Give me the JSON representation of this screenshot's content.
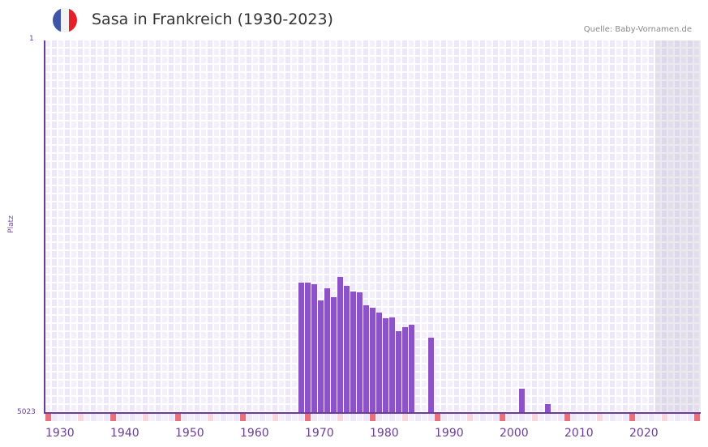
{
  "header": {
    "title": "Sasa in Frankreich (1930-2023)",
    "source": "Quelle: Baby-Vornamen.de",
    "flag": {
      "name": "france-flag",
      "colors": [
        "#3e55a8",
        "#f3f3f3",
        "#e6202b"
      ]
    }
  },
  "colors": {
    "bar": "#8c52c8",
    "axis": "#6a3d9a",
    "decade_marker": "#e8707a",
    "half_decade_marker": "#f7d6de",
    "future_shade": "rgba(170,160,190,0.22)"
  },
  "chart_data": {
    "type": "bar",
    "title": "Sasa in Frankreich (1930-2023)",
    "xlabel": "",
    "ylabel": "Platz",
    "y_inverted": true,
    "ylim": [
      5023,
      1
    ],
    "y_ticks": [
      "1",
      "5023"
    ],
    "x_range": [
      1930,
      2030
    ],
    "x_ticks": [
      "1930",
      "1940",
      "1950",
      "1960",
      "1970",
      "1980",
      "1990",
      "2000",
      "2010",
      "2020"
    ],
    "future_shaded_from": 2024,
    "grid": true,
    "legend": null,
    "categories": [
      1969,
      1970,
      1971,
      1972,
      1973,
      1974,
      1975,
      1976,
      1977,
      1978,
      1979,
      1980,
      1981,
      1982,
      1983,
      1984,
      1985,
      1986,
      1989,
      2003,
      2007
    ],
    "values": [
      3265,
      3265,
      3287,
      3505,
      3342,
      3462,
      3189,
      3309,
      3385,
      3396,
      3571,
      3604,
      3669,
      3746,
      3735,
      3920,
      3866,
      3833,
      4008,
      4695,
      4903
    ]
  }
}
